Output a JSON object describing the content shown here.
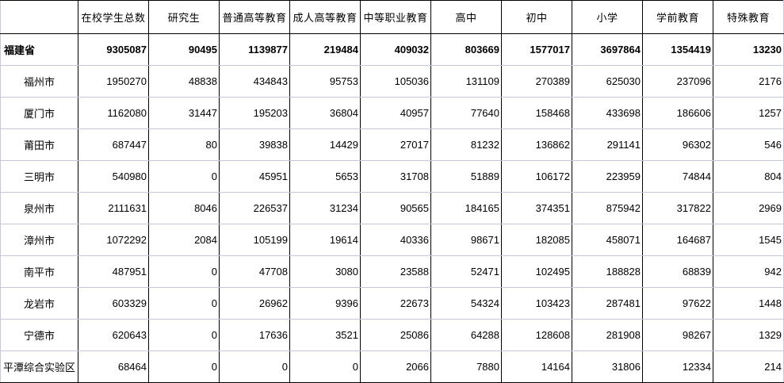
{
  "table": {
    "columns": [
      "",
      "在校学生总数",
      "研究生",
      "普通高等教育",
      "成人高等教育",
      "中等职业教育",
      "高中",
      "初中",
      "小学",
      "学前教育",
      "特殊教育"
    ],
    "rows": [
      {
        "region": "福建省",
        "total": true,
        "values": [
          "9305087",
          "90495",
          "1139877",
          "219484",
          "409032",
          "803669",
          "1577017",
          "3697864",
          "1354419",
          "13230"
        ]
      },
      {
        "region": "福州市",
        "values": [
          "1950270",
          "48838",
          "434843",
          "95753",
          "105036",
          "131109",
          "270389",
          "625030",
          "237096",
          "2176"
        ]
      },
      {
        "region": "厦门市",
        "values": [
          "1162080",
          "31447",
          "195203",
          "36804",
          "40957",
          "77640",
          "158468",
          "433698",
          "186606",
          "1257"
        ]
      },
      {
        "region": "莆田市",
        "values": [
          "687447",
          "80",
          "39838",
          "14429",
          "27017",
          "81232",
          "136862",
          "291141",
          "96302",
          "546"
        ]
      },
      {
        "region": "三明市",
        "values": [
          "540980",
          "0",
          "45951",
          "5653",
          "31708",
          "51889",
          "106172",
          "223959",
          "74844",
          "804"
        ]
      },
      {
        "region": "泉州市",
        "values": [
          "2111631",
          "8046",
          "226537",
          "31234",
          "90565",
          "184165",
          "374351",
          "875942",
          "317822",
          "2969"
        ]
      },
      {
        "region": "漳州市",
        "values": [
          "1072292",
          "2084",
          "105199",
          "19614",
          "40336",
          "98671",
          "182085",
          "458071",
          "164687",
          "1545"
        ]
      },
      {
        "region": "南平市",
        "values": [
          "487951",
          "0",
          "47708",
          "3080",
          "23588",
          "52471",
          "102495",
          "188828",
          "68839",
          "942"
        ]
      },
      {
        "region": "龙岩市",
        "values": [
          "603329",
          "0",
          "26962",
          "9396",
          "22673",
          "54324",
          "103423",
          "287481",
          "97622",
          "1448"
        ]
      },
      {
        "region": "宁德市",
        "values": [
          "620643",
          "0",
          "17636",
          "3521",
          "25086",
          "64288",
          "128608",
          "281908",
          "98267",
          "1329"
        ]
      },
      {
        "region": "平潭综合实验区",
        "values": [
          "68464",
          "0",
          "0",
          "0",
          "2066",
          "7880",
          "14164",
          "31806",
          "12334",
          "214"
        ]
      }
    ]
  }
}
